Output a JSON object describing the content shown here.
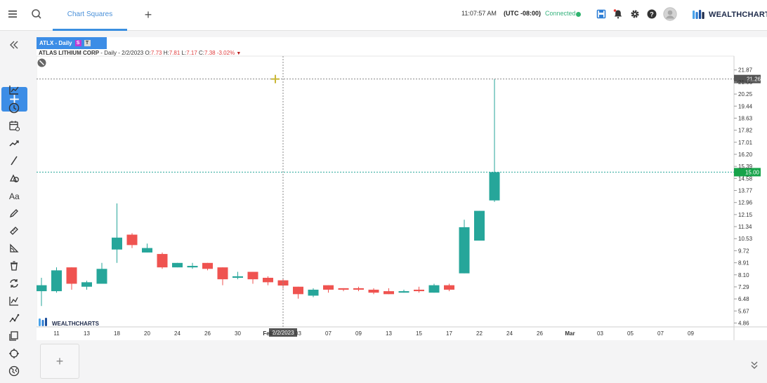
{
  "topbar": {
    "tab_label": "Chart Squares",
    "add_tab": "+",
    "clock": "11:07:57 AM",
    "timezone": "(UTC -08:00)",
    "connection": "Connected",
    "brand": "WEALTHCHARTS"
  },
  "symbol": {
    "tab": "ATLX - Daily",
    "badge_s": "S",
    "badge_t": "T",
    "company": "ATLAS LITHIUM CORP",
    "interval_date": " - Daily - 2/2/2023 ",
    "o_label": "O:",
    "o": "7.73",
    "h_label": "H:",
    "h": "7.81",
    "l_label": "L:",
    "l": "7.17",
    "c_label": "C:",
    "c": "7.38",
    "change": "-3.02%"
  },
  "colors": {
    "up": "#26a69a",
    "down": "#ef5350",
    "accent": "#3c8de6",
    "current": "#16a34a"
  },
  "chart_data": {
    "type": "candlestick",
    "y_ticks": [
      "21.87",
      "21.06",
      "20.25",
      "19.44",
      "18.63",
      "17.82",
      "17.01",
      "16.20",
      "15.39",
      "14.58",
      "13.77",
      "12.96",
      "12.15",
      "11.34",
      "10.53",
      "9.72",
      "8.91",
      "8.10",
      "7.29",
      "6.48",
      "5.67",
      "4.86"
    ],
    "ylim": [
      4.6,
      22.8
    ],
    "x_ticks": [
      "11",
      "13",
      "18",
      "20",
      "24",
      "26",
      "30",
      "Feb",
      "03",
      "07",
      "09",
      "13",
      "15",
      "17",
      "22",
      "24",
      "26",
      "Mar",
      "03",
      "05",
      "07",
      "09"
    ],
    "crosshair_x_label": "2/2/2023",
    "crosshair_price": "21.26",
    "current_price": "15.00",
    "watermark": "WEALTHCHARTS",
    "candles": [
      {
        "o": 7.0,
        "h": 7.9,
        "l": 6.0,
        "c": 7.4
      },
      {
        "o": 7.0,
        "h": 8.6,
        "l": 6.9,
        "c": 8.4
      },
      {
        "o": 8.6,
        "h": 8.6,
        "l": 7.1,
        "c": 7.5
      },
      {
        "o": 7.3,
        "h": 7.7,
        "l": 7.1,
        "c": 7.6
      },
      {
        "o": 7.5,
        "h": 8.9,
        "l": 7.5,
        "c": 8.5
      },
      {
        "o": 9.8,
        "h": 12.9,
        "l": 8.9,
        "c": 10.6
      },
      {
        "o": 10.8,
        "h": 10.9,
        "l": 9.9,
        "c": 10.1
      },
      {
        "o": 9.6,
        "h": 10.2,
        "l": 9.6,
        "c": 9.9
      },
      {
        "o": 9.5,
        "h": 9.6,
        "l": 8.5,
        "c": 8.6
      },
      {
        "o": 8.6,
        "h": 8.9,
        "l": 8.6,
        "c": 8.9
      },
      {
        "o": 8.6,
        "h": 8.9,
        "l": 8.5,
        "c": 8.7
      },
      {
        "o": 8.9,
        "h": 8.9,
        "l": 8.4,
        "c": 8.5
      },
      {
        "o": 8.6,
        "h": 8.6,
        "l": 7.4,
        "c": 7.8
      },
      {
        "o": 7.9,
        "h": 8.3,
        "l": 7.8,
        "c": 8.0
      },
      {
        "o": 8.3,
        "h": 8.3,
        "l": 7.5,
        "c": 7.8
      },
      {
        "o": 7.9,
        "h": 8.0,
        "l": 7.4,
        "c": 7.6
      },
      {
        "o": 7.73,
        "h": 7.81,
        "l": 7.17,
        "c": 7.38
      },
      {
        "o": 7.3,
        "h": 7.3,
        "l": 6.5,
        "c": 6.8
      },
      {
        "o": 6.7,
        "h": 7.2,
        "l": 6.6,
        "c": 7.1
      },
      {
        "o": 7.4,
        "h": 7.4,
        "l": 6.9,
        "c": 7.1
      },
      {
        "o": 7.2,
        "h": 7.2,
        "l": 7.0,
        "c": 7.1
      },
      {
        "o": 7.2,
        "h": 7.3,
        "l": 7.0,
        "c": 7.1
      },
      {
        "o": 7.1,
        "h": 7.2,
        "l": 6.8,
        "c": 6.9
      },
      {
        "o": 7.0,
        "h": 7.2,
        "l": 6.8,
        "c": 6.8
      },
      {
        "o": 6.9,
        "h": 7.1,
        "l": 6.9,
        "c": 7.0
      },
      {
        "o": 7.1,
        "h": 7.3,
        "l": 6.9,
        "c": 7.0
      },
      {
        "o": 6.9,
        "h": 7.5,
        "l": 6.9,
        "c": 7.4
      },
      {
        "o": 7.4,
        "h": 7.5,
        "l": 7.0,
        "c": 7.1
      },
      {
        "o": 8.2,
        "h": 11.8,
        "l": 8.2,
        "c": 11.3
      },
      {
        "o": 10.4,
        "h": 12.4,
        "l": 10.4,
        "c": 12.4
      },
      {
        "o": 13.1,
        "h": 21.26,
        "l": 13.0,
        "c": 15.0
      }
    ]
  }
}
